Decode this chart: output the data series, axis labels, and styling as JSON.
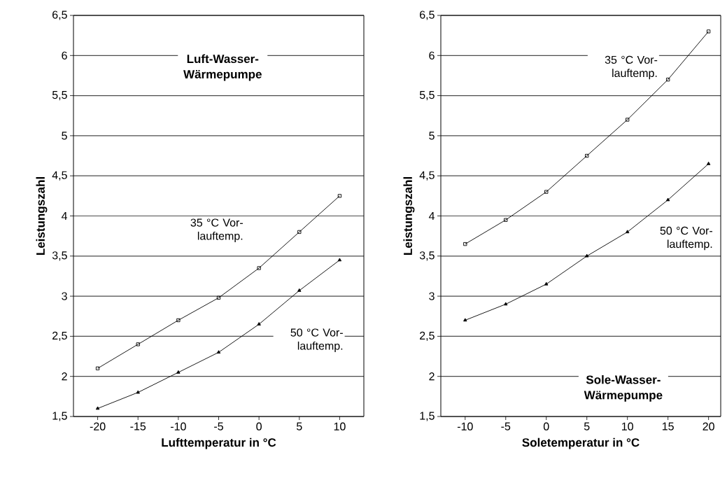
{
  "chart_data": [
    {
      "type": "line",
      "title": "Luft-Wasser-Wärmepumpe",
      "xlabel": "Lufttemperatur in °C",
      "ylabel": "Leistungszahl",
      "x": [
        -20,
        -15,
        -10,
        -5,
        0,
        5,
        10
      ],
      "series": [
        {
          "name": "35 °C Vor-lauftemp.",
          "color": "#000000",
          "marker": "square",
          "values": [
            2.1,
            2.4,
            2.7,
            2.98,
            3.35,
            3.8,
            4.25
          ]
        },
        {
          "name": "50 °C Vor-lauftemp.",
          "color": "#000000",
          "marker": "triangle",
          "values": [
            1.6,
            1.8,
            2.05,
            2.3,
            2.65,
            3.07,
            3.45
          ]
        }
      ],
      "xlim": [
        -23,
        13
      ],
      "ylim": [
        1.5,
        6.5
      ],
      "xticks": [
        -20,
        -15,
        -10,
        -5,
        0,
        5,
        10
      ],
      "yticks": [
        {
          "value": 1.5,
          "label": "1,5"
        },
        2,
        {
          "value": 2.5,
          "label": "2,5"
        },
        3,
        {
          "value": 3.5,
          "label": "3,5"
        },
        4,
        {
          "value": 4.5,
          "label": "4,5"
        },
        5,
        {
          "value": 5.5,
          "label": "5,5"
        },
        6,
        {
          "value": 6.5,
          "label": "6,5"
        }
      ],
      "grid": "y"
    },
    {
      "type": "line",
      "title": "Sole-Wasser-Wärmepumpe",
      "xlabel": "Soletemperatur in °C",
      "ylabel": "Leistungszahl",
      "x": [
        -10,
        -5,
        0,
        5,
        10,
        15,
        20
      ],
      "series": [
        {
          "name": "35 °C Vor-lauftemp.",
          "color": "#000000",
          "marker": "square",
          "values": [
            3.65,
            3.95,
            4.3,
            4.75,
            5.2,
            5.7,
            6.3
          ]
        },
        {
          "name": "50 °C Vor-lauftemp.",
          "color": "#000000",
          "marker": "triangle",
          "values": [
            2.7,
            2.9,
            3.15,
            3.5,
            3.8,
            4.2,
            4.65
          ]
        }
      ],
      "xlim": [
        -13,
        21.5
      ],
      "ylim": [
        1.5,
        6.5
      ],
      "xticks": [
        -10,
        -5,
        0,
        5,
        10,
        15,
        20
      ],
      "yticks": [
        {
          "value": 1.5,
          "label": "1,5"
        },
        2,
        {
          "value": 2.5,
          "label": "2,5"
        },
        3,
        {
          "value": 3.5,
          "label": "3,5"
        },
        4,
        {
          "value": 4.5,
          "label": "4,5"
        },
        5,
        {
          "value": 5.5,
          "label": "5,5"
        },
        6,
        {
          "value": 6.5,
          "label": "6,5"
        }
      ],
      "grid": "y"
    }
  ]
}
